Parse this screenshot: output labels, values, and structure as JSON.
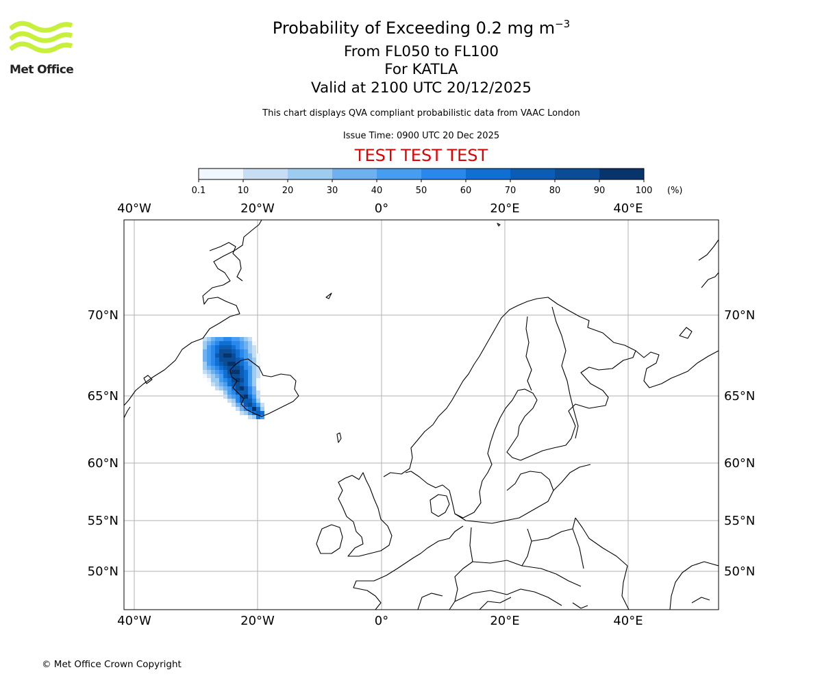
{
  "header": {
    "title_main": "Probability of Exceeding 0.2 mg m",
    "title_exponent": "−3",
    "title_level": "From FL050 to FL100",
    "title_volcano": "For KATLA",
    "title_valid": "Valid at 2100 UTC 20/12/2025",
    "subtitle": "This chart displays QVA compliant probabilistic data from VAAC London",
    "issue_time": "Issue Time: 0900 UTC 20 Dec 2025",
    "test_banner": "TEST TEST TEST",
    "test_color": "#e00000"
  },
  "logo": {
    "text": "Met Office",
    "icon": "met-office-waves-logo",
    "color": "#c6f03c"
  },
  "colorbar": {
    "ticks": [
      "0.1",
      "10",
      "20",
      "30",
      "40",
      "50",
      "60",
      "70",
      "80",
      "90",
      "100"
    ],
    "unit": "(%)",
    "colors": [
      "#f0f7ff",
      "#c6ddf3",
      "#9ecbf0",
      "#6fb0ef",
      "#479ef0",
      "#2a88ec",
      "#0f6fd2",
      "#0a5cb5",
      "#0a4c96",
      "#07356b"
    ]
  },
  "map": {
    "longitude_labels": [
      "40°W",
      "20°W",
      "0°",
      "20°E",
      "40°E"
    ],
    "latitude_labels": [
      "70°N",
      "65°N",
      "60°N",
      "55°N",
      "50°N"
    ],
    "grid_color": "#b0b0b0",
    "coast_color": "#000000"
  },
  "footer": {
    "copyright": "© Met Office Crown Copyright"
  }
}
